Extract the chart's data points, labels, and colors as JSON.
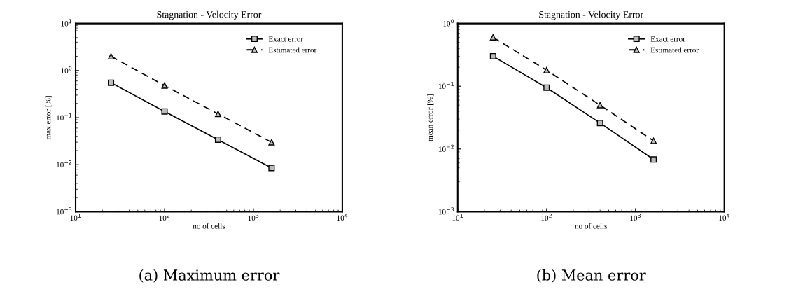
{
  "chart_data": [
    {
      "type": "line",
      "title": "Stagnation - Velocity Error",
      "xlabel": "no of cells",
      "ylabel": "max error [%]",
      "log": "xy",
      "x": [
        25,
        100,
        400,
        1600
      ],
      "series": [
        {
          "name": "Exact error",
          "color": "#000000",
          "marker": "square",
          "line_style": "solid",
          "values": [
            0.55,
            0.135,
            0.034,
            0.0085
          ]
        },
        {
          "name": "Estimated error",
          "color": "#000000",
          "marker": "triangle",
          "line_style": "dashed",
          "values": [
            2.0,
            0.48,
            0.12,
            0.03
          ]
        }
      ],
      "xlim": [
        10,
        10000
      ],
      "xticks": [
        {
          "value": 10,
          "label": "10$^{1}$"
        },
        {
          "value": 100,
          "label": "10$^{2}$"
        },
        {
          "value": 1000,
          "label": "10$^{3}$"
        },
        {
          "value": 10000,
          "label": "10$^{4}$"
        }
      ],
      "ylim": [
        0.001,
        10
      ],
      "yticks": [
        {
          "value": 0.001,
          "label": "10$^{−3}$"
        },
        {
          "value": 0.01,
          "label": "10$^{−2}$"
        },
        {
          "value": 0.1,
          "label": "10$^{−1}$"
        },
        {
          "value": 1,
          "label": "10$^{0}$"
        },
        {
          "value": 10,
          "label": "10$^{1}$"
        }
      ],
      "legend": "top right",
      "grid": false,
      "annotations": [
        "(a) Maximum error"
      ]
    },
    {
      "type": "line",
      "title": "Stagnation - Velocity Error",
      "xlabel": "no of cells",
      "ylabel": "mean error [%]",
      "log": "xy",
      "x": [
        25,
        100,
        400,
        1600
      ],
      "series": [
        {
          "name": "Exact error",
          "color": "#000000",
          "marker": "square",
          "line_style": "solid",
          "values": [
            0.3,
            0.095,
            0.026,
            0.0068
          ]
        },
        {
          "name": "Estimated error",
          "color": "#000000",
          "marker": "triangle",
          "line_style": "dashed",
          "values": [
            0.6,
            0.18,
            0.05,
            0.0135
          ]
        }
      ],
      "xlim": [
        10,
        10000
      ],
      "xticks": [
        {
          "value": 10,
          "label": "10$^{1}$"
        },
        {
          "value": 100,
          "label": "10$^{2}$"
        },
        {
          "value": 1000,
          "label": "10$^{3}$"
        },
        {
          "value": 10000,
          "label": "10$^{4}$"
        }
      ],
      "ylim": [
        0.001,
        1
      ],
      "yticks": [
        {
          "value": 0.001,
          "label": "10$^{−3}$"
        },
        {
          "value": 0.01,
          "label": "10$^{−2}$"
        },
        {
          "value": 0.1,
          "label": "10$^{−1}$"
        },
        {
          "value": 1,
          "label": "10$^{0}$"
        }
      ],
      "legend": "top right",
      "grid": false,
      "annotations": [
        "(b) Mean error"
      ]
    }
  ]
}
